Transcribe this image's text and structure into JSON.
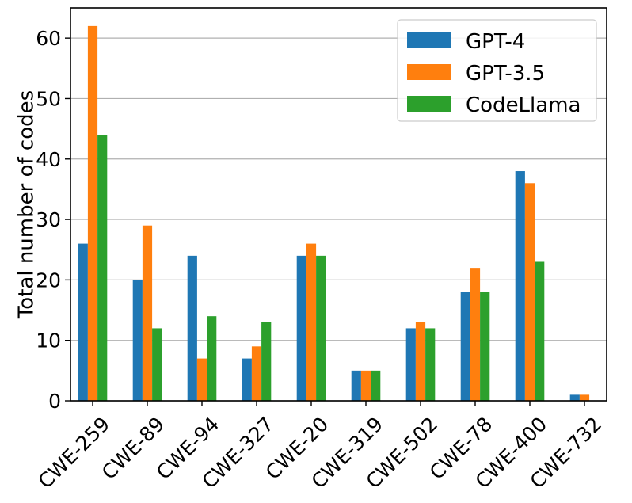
{
  "chart_data": {
    "type": "bar",
    "title": "",
    "xlabel": "",
    "ylabel": "Total number of codes",
    "ylim": [
      0,
      65
    ],
    "yticks": [
      0,
      10,
      20,
      30,
      40,
      50,
      60
    ],
    "grid": "horizontal",
    "legend_position": "top-right",
    "categories": [
      "CWE-259",
      "CWE-89",
      "CWE-94",
      "CWE-327",
      "CWE-20",
      "CWE-319",
      "CWE-502",
      "CWE-78",
      "CWE-400",
      "CWE-732"
    ],
    "series": [
      {
        "name": "GPT-4",
        "color": "#1f77b4",
        "values": [
          26,
          20,
          24,
          7,
          24,
          5,
          12,
          18,
          38,
          1
        ]
      },
      {
        "name": "GPT-3.5",
        "color": "#ff7f0e",
        "values": [
          62,
          29,
          7,
          9,
          26,
          5,
          13,
          22,
          36,
          1
        ]
      },
      {
        "name": "CodeLlama",
        "color": "#2ca02c",
        "values": [
          44,
          12,
          14,
          13,
          24,
          5,
          12,
          18,
          23,
          0
        ]
      }
    ]
  }
}
